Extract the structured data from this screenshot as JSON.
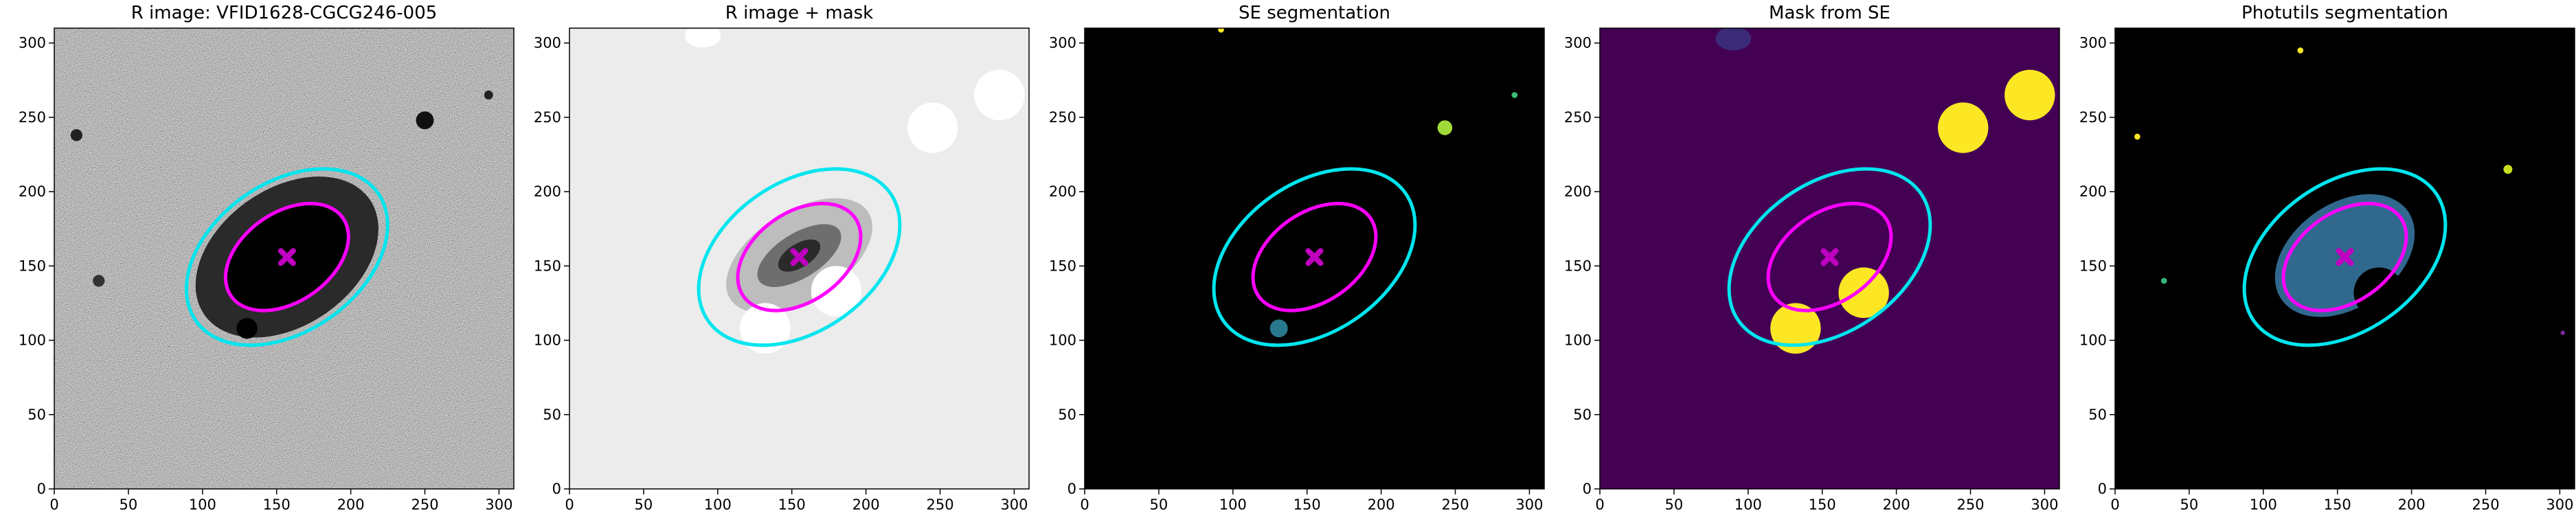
{
  "chart_data": [
    {
      "type": "image",
      "title": "R image: VFID1628-CGCG246-005",
      "background": "#7a7a7a",
      "noise": true,
      "xlim": [
        0,
        310
      ],
      "ylim": [
        0,
        310
      ],
      "xticks": [
        0,
        50,
        100,
        150,
        200,
        250,
        300
      ],
      "yticks": [
        0,
        50,
        100,
        150,
        200,
        250,
        300
      ],
      "blobs": [
        {
          "x": 157,
          "y": 156,
          "rx": 68,
          "ry": 46,
          "angle": 35,
          "color": "#2a2a2a"
        },
        {
          "x": 157,
          "y": 156,
          "rx": 46,
          "ry": 30,
          "angle": 35,
          "color": "#000000"
        },
        {
          "x": 130,
          "y": 108,
          "rx": 7,
          "ry": 7,
          "angle": 0,
          "color": "#000000"
        },
        {
          "x": 250,
          "y": 248,
          "rx": 6,
          "ry": 6,
          "angle": 0,
          "color": "#111111"
        },
        {
          "x": 15,
          "y": 238,
          "rx": 4,
          "ry": 4,
          "angle": 0,
          "color": "#222222"
        },
        {
          "x": 293,
          "y": 265,
          "rx": 3,
          "ry": 3,
          "angle": 0,
          "color": "#222222"
        },
        {
          "x": 30,
          "y": 140,
          "rx": 4,
          "ry": 4,
          "angle": 0,
          "color": "#333333"
        }
      ],
      "ellipses": [
        {
          "x": 157,
          "y": 156,
          "rx": 75,
          "ry": 50,
          "angle": 35,
          "color": "#00e5ee"
        },
        {
          "x": 157,
          "y": 156,
          "rx": 46,
          "ry": 30,
          "angle": 35,
          "color": "#ff00ff"
        }
      ],
      "marker": {
        "x": 157,
        "y": 156,
        "color": "#c000c0"
      }
    },
    {
      "type": "image",
      "title": "R image + mask",
      "background": "#ececec",
      "noise": false,
      "xlim": [
        0,
        310
      ],
      "ylim": [
        0,
        310
      ],
      "xticks": [
        0,
        50,
        100,
        150,
        200,
        250,
        300
      ],
      "yticks": [
        0,
        50,
        100,
        150,
        200,
        250,
        300
      ],
      "blobs": [
        {
          "x": 155,
          "y": 157,
          "rx": 55,
          "ry": 30,
          "angle": 32,
          "color": "#bdbdbd"
        },
        {
          "x": 155,
          "y": 157,
          "rx": 32,
          "ry": 15,
          "angle": 32,
          "color": "#6e6e6e"
        },
        {
          "x": 155,
          "y": 157,
          "rx": 16,
          "ry": 8,
          "angle": 32,
          "color": "#2a2a2a"
        },
        {
          "x": 180,
          "y": 133,
          "rx": 17,
          "ry": 17,
          "angle": 0,
          "color": "#ffffff"
        },
        {
          "x": 132,
          "y": 108,
          "rx": 17,
          "ry": 17,
          "angle": 0,
          "color": "#ffffff"
        },
        {
          "x": 245,
          "y": 243,
          "rx": 17,
          "ry": 17,
          "angle": 0,
          "color": "#ffffff"
        },
        {
          "x": 290,
          "y": 265,
          "rx": 17,
          "ry": 17,
          "angle": 0,
          "color": "#ffffff"
        },
        {
          "x": 90,
          "y": 305,
          "rx": 12,
          "ry": 8,
          "angle": 0,
          "color": "#ffffff"
        }
      ],
      "ellipses": [
        {
          "x": 155,
          "y": 156,
          "rx": 75,
          "ry": 50,
          "angle": 35,
          "color": "#00e5ee"
        },
        {
          "x": 155,
          "y": 156,
          "rx": 46,
          "ry": 30,
          "angle": 35,
          "color": "#ff00ff"
        }
      ],
      "marker": {
        "x": 155,
        "y": 156,
        "color": "#c000c0"
      }
    },
    {
      "type": "image",
      "title": "SE segmentation",
      "background": "#000000",
      "noise": false,
      "xlim": [
        0,
        310
      ],
      "ylim": [
        0,
        310
      ],
      "xticks": [
        0,
        50,
        100,
        150,
        200,
        250,
        300
      ],
      "yticks": [
        0,
        50,
        100,
        150,
        200,
        250,
        300
      ],
      "blobs": [
        {
          "x": 131,
          "y": 108,
          "rx": 6,
          "ry": 6,
          "angle": 0,
          "color": "#2a788e"
        },
        {
          "x": 243,
          "y": 243,
          "rx": 5,
          "ry": 5,
          "angle": 0,
          "color": "#a0da39"
        },
        {
          "x": 290,
          "y": 265,
          "rx": 2,
          "ry": 2,
          "angle": 0,
          "color": "#3dbc74"
        },
        {
          "x": 92,
          "y": 309,
          "rx": 2,
          "ry": 2,
          "angle": 0,
          "color": "#fde725"
        }
      ],
      "ellipses": [
        {
          "x": 155,
          "y": 156,
          "rx": 75,
          "ry": 50,
          "angle": 35,
          "color": "#00e5ee"
        },
        {
          "x": 155,
          "y": 156,
          "rx": 46,
          "ry": 30,
          "angle": 35,
          "color": "#ff00ff"
        }
      ],
      "marker": {
        "x": 155,
        "y": 156,
        "color": "#c000c0"
      }
    },
    {
      "type": "image",
      "title": "Mask from SE",
      "background": "#440154",
      "noise": false,
      "xlim": [
        0,
        310
      ],
      "ylim": [
        0,
        310
      ],
      "xticks": [
        0,
        50,
        100,
        150,
        200,
        250,
        300
      ],
      "yticks": [
        0,
        50,
        100,
        150,
        200,
        250,
        300
      ],
      "blobs": [
        {
          "x": 245,
          "y": 243,
          "rx": 17,
          "ry": 17,
          "angle": 0,
          "color": "#fde725"
        },
        {
          "x": 290,
          "y": 265,
          "rx": 17,
          "ry": 17,
          "angle": 0,
          "color": "#fde725"
        },
        {
          "x": 132,
          "y": 108,
          "rx": 17,
          "ry": 17,
          "angle": 0,
          "color": "#fde725"
        },
        {
          "x": 178,
          "y": 132,
          "rx": 17,
          "ry": 17,
          "angle": 0,
          "color": "#fde725"
        },
        {
          "x": 90,
          "y": 303,
          "rx": 12,
          "ry": 8,
          "angle": 0,
          "color": "#3b2a78"
        }
      ],
      "ellipses": [
        {
          "x": 155,
          "y": 156,
          "rx": 75,
          "ry": 50,
          "angle": 35,
          "color": "#00e5ee"
        },
        {
          "x": 155,
          "y": 156,
          "rx": 46,
          "ry": 30,
          "angle": 35,
          "color": "#ff00ff"
        }
      ],
      "marker": {
        "x": 155,
        "y": 156,
        "color": "#c000c0"
      }
    },
    {
      "type": "image",
      "title": "Photutils segmentation",
      "background": "#000000",
      "noise": false,
      "xlim": [
        0,
        310
      ],
      "ylim": [
        0,
        310
      ],
      "xticks": [
        0,
        50,
        100,
        150,
        200,
        250,
        300
      ],
      "yticks": [
        0,
        50,
        100,
        150,
        200,
        250,
        300
      ],
      "blobs": [
        {
          "x": 155,
          "y": 157,
          "rx": 52,
          "ry": 35,
          "angle": 35,
          "color": "#31688e"
        },
        {
          "x": 178,
          "y": 132,
          "rx": 17,
          "ry": 17,
          "angle": 0,
          "color": "#000000"
        },
        {
          "x": 15,
          "y": 237,
          "rx": 2,
          "ry": 2,
          "angle": 0,
          "color": "#fde725"
        },
        {
          "x": 265,
          "y": 215,
          "rx": 3,
          "ry": 3,
          "angle": 0,
          "color": "#c8e020"
        },
        {
          "x": 33,
          "y": 140,
          "rx": 2,
          "ry": 2,
          "angle": 0,
          "color": "#35b779"
        },
        {
          "x": 125,
          "y": 295,
          "rx": 2,
          "ry": 2,
          "angle": 0,
          "color": "#fde725"
        },
        {
          "x": 302,
          "y": 105,
          "rx": 1.5,
          "ry": 1.5,
          "angle": 0,
          "color": "#7a2a9a"
        }
      ],
      "ellipses": [
        {
          "x": 155,
          "y": 156,
          "rx": 75,
          "ry": 50,
          "angle": 35,
          "color": "#00e5ee"
        },
        {
          "x": 155,
          "y": 156,
          "rx": 46,
          "ry": 30,
          "angle": 35,
          "color": "#ff00ff"
        }
      ],
      "marker": {
        "x": 155,
        "y": 156,
        "color": "#c000c0"
      }
    }
  ]
}
